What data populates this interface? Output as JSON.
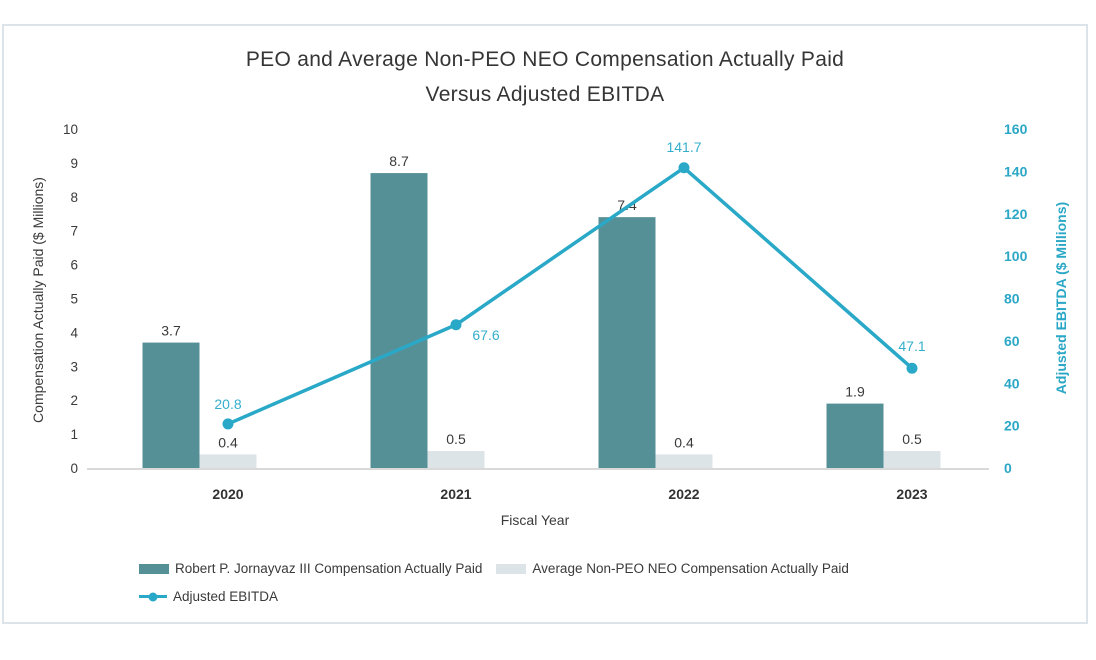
{
  "chart_data": {
    "type": "combo-bar-line",
    "title_line1": "PEO and Average Non-PEO NEO Compensation Actually Paid",
    "title_line2": "Versus Adjusted EBITDA",
    "categories": [
      "2020",
      "2021",
      "2022",
      "2023"
    ],
    "xlabel": "Fiscal Year",
    "left_axis": {
      "label": "Compensation Actually Paid ($ Millions)",
      "min": 0,
      "max": 10,
      "tick_step": 1
    },
    "right_axis": {
      "label": "Adjusted EBITDA ($ Millions)",
      "min": 0,
      "max": 160,
      "tick_step": 20
    },
    "series": [
      {
        "name": "Robert P. Jornayvaz III Compensation Actually Paid",
        "type": "bar",
        "axis": "left",
        "values": [
          3.7,
          8.7,
          7.4,
          1.9
        ],
        "labels": [
          "3.7",
          "8.7",
          "7.4",
          "1.9"
        ],
        "color": "#569097"
      },
      {
        "name": "Average Non-PEO NEO Compensation Actually Paid",
        "type": "bar",
        "axis": "left",
        "values": [
          0.4,
          0.5,
          0.4,
          0.5
        ],
        "labels": [
          "0.4",
          "0.5",
          "0.4",
          "0.5"
        ],
        "color": "#dce4e8"
      },
      {
        "name": "Adjusted EBITDA",
        "type": "line",
        "axis": "right",
        "values": [
          20.8,
          67.6,
          141.7,
          47.1
        ],
        "labels": [
          "20.8",
          "67.6",
          "141.7",
          "47.1"
        ],
        "color": "#29a9c7"
      }
    ],
    "grid": false,
    "legend_position": "bottom-left",
    "colors": {
      "bar_label_text": "#3a3a3a",
      "line_label_text": "#35aecb",
      "right_axis_text": "#2ba7c6",
      "axis_line": "#d9d9d9",
      "tick_text": "#3a3a3a",
      "chart_border": "#dce3e9"
    }
  }
}
